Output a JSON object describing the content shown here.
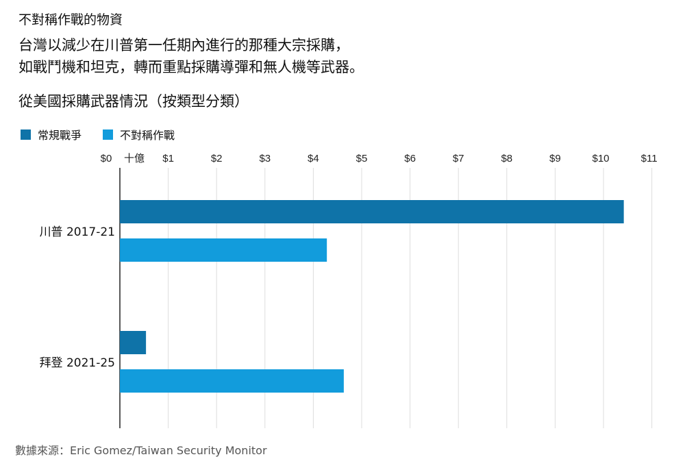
{
  "header": {
    "title": "不對稱作戰的物資",
    "subtitle_lines": [
      "台灣以減少在川普第一任期內進行的那種大宗採購，",
      "如戰鬥機和坦克，轉而重點採購導彈和無人機等武器。"
    ]
  },
  "chart_data": {
    "type": "bar",
    "orientation": "horizontal",
    "title": "從美國採購武器情況（按類型分類）",
    "categories": [
      "川普 2017-21",
      "拜登 2021-25"
    ],
    "series": [
      {
        "name": "常規戰爭",
        "color": "#0f73a8",
        "values": [
          10.42,
          0.54
        ]
      },
      {
        "name": "不對稱作戰",
        "color": "#129cdc",
        "values": [
          4.28,
          4.63
        ]
      }
    ],
    "xlim": [
      0,
      11
    ],
    "xticks": [
      "$0",
      "$1",
      "$2",
      "$3",
      "$4",
      "$5",
      "$6",
      "$7",
      "$8",
      "$9",
      "$10",
      "$11"
    ],
    "unit_label": "十億",
    "grid": true,
    "legend": "top-left"
  },
  "footer": {
    "source": "數據來源：Eric Gomez/Taiwan Security Monitor"
  }
}
